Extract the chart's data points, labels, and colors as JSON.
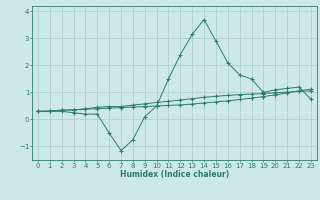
{
  "xlabel": "Humidex (Indice chaleur)",
  "x": [
    0,
    1,
    2,
    3,
    4,
    5,
    6,
    7,
    8,
    9,
    10,
    11,
    12,
    13,
    14,
    15,
    16,
    17,
    18,
    19,
    20,
    21,
    22,
    23
  ],
  "line1": [
    0.3,
    0.3,
    0.3,
    0.25,
    0.2,
    0.2,
    -0.5,
    -1.15,
    -0.75,
    0.1,
    0.5,
    1.5,
    2.4,
    3.15,
    3.7,
    2.9,
    2.1,
    1.65,
    1.5,
    1.0,
    1.1,
    1.15,
    1.2,
    0.75
  ],
  "line2": [
    0.3,
    0.3,
    0.35,
    0.35,
    0.4,
    0.45,
    0.48,
    0.48,
    0.53,
    0.58,
    0.63,
    0.67,
    0.72,
    0.77,
    0.82,
    0.86,
    0.89,
    0.92,
    0.94,
    0.96,
    0.99,
    1.01,
    1.04,
    1.06
  ],
  "line3": [
    0.3,
    0.32,
    0.34,
    0.36,
    0.38,
    0.4,
    0.42,
    0.44,
    0.46,
    0.48,
    0.5,
    0.52,
    0.54,
    0.57,
    0.61,
    0.65,
    0.69,
    0.74,
    0.79,
    0.85,
    0.91,
    0.98,
    1.06,
    1.12
  ],
  "color": "#2e7d6e",
  "bg_color": "#cce8e8",
  "grid_color": "#aacccc",
  "ylim": [
    -1.5,
    4.2
  ],
  "xlim": [
    -0.5,
    23.5
  ],
  "yticks": [
    -1,
    0,
    1,
    2,
    3,
    4
  ],
  "xticks": [
    0,
    1,
    2,
    3,
    4,
    5,
    6,
    7,
    8,
    9,
    10,
    11,
    12,
    13,
    14,
    15,
    16,
    17,
    18,
    19,
    20,
    21,
    22,
    23
  ]
}
